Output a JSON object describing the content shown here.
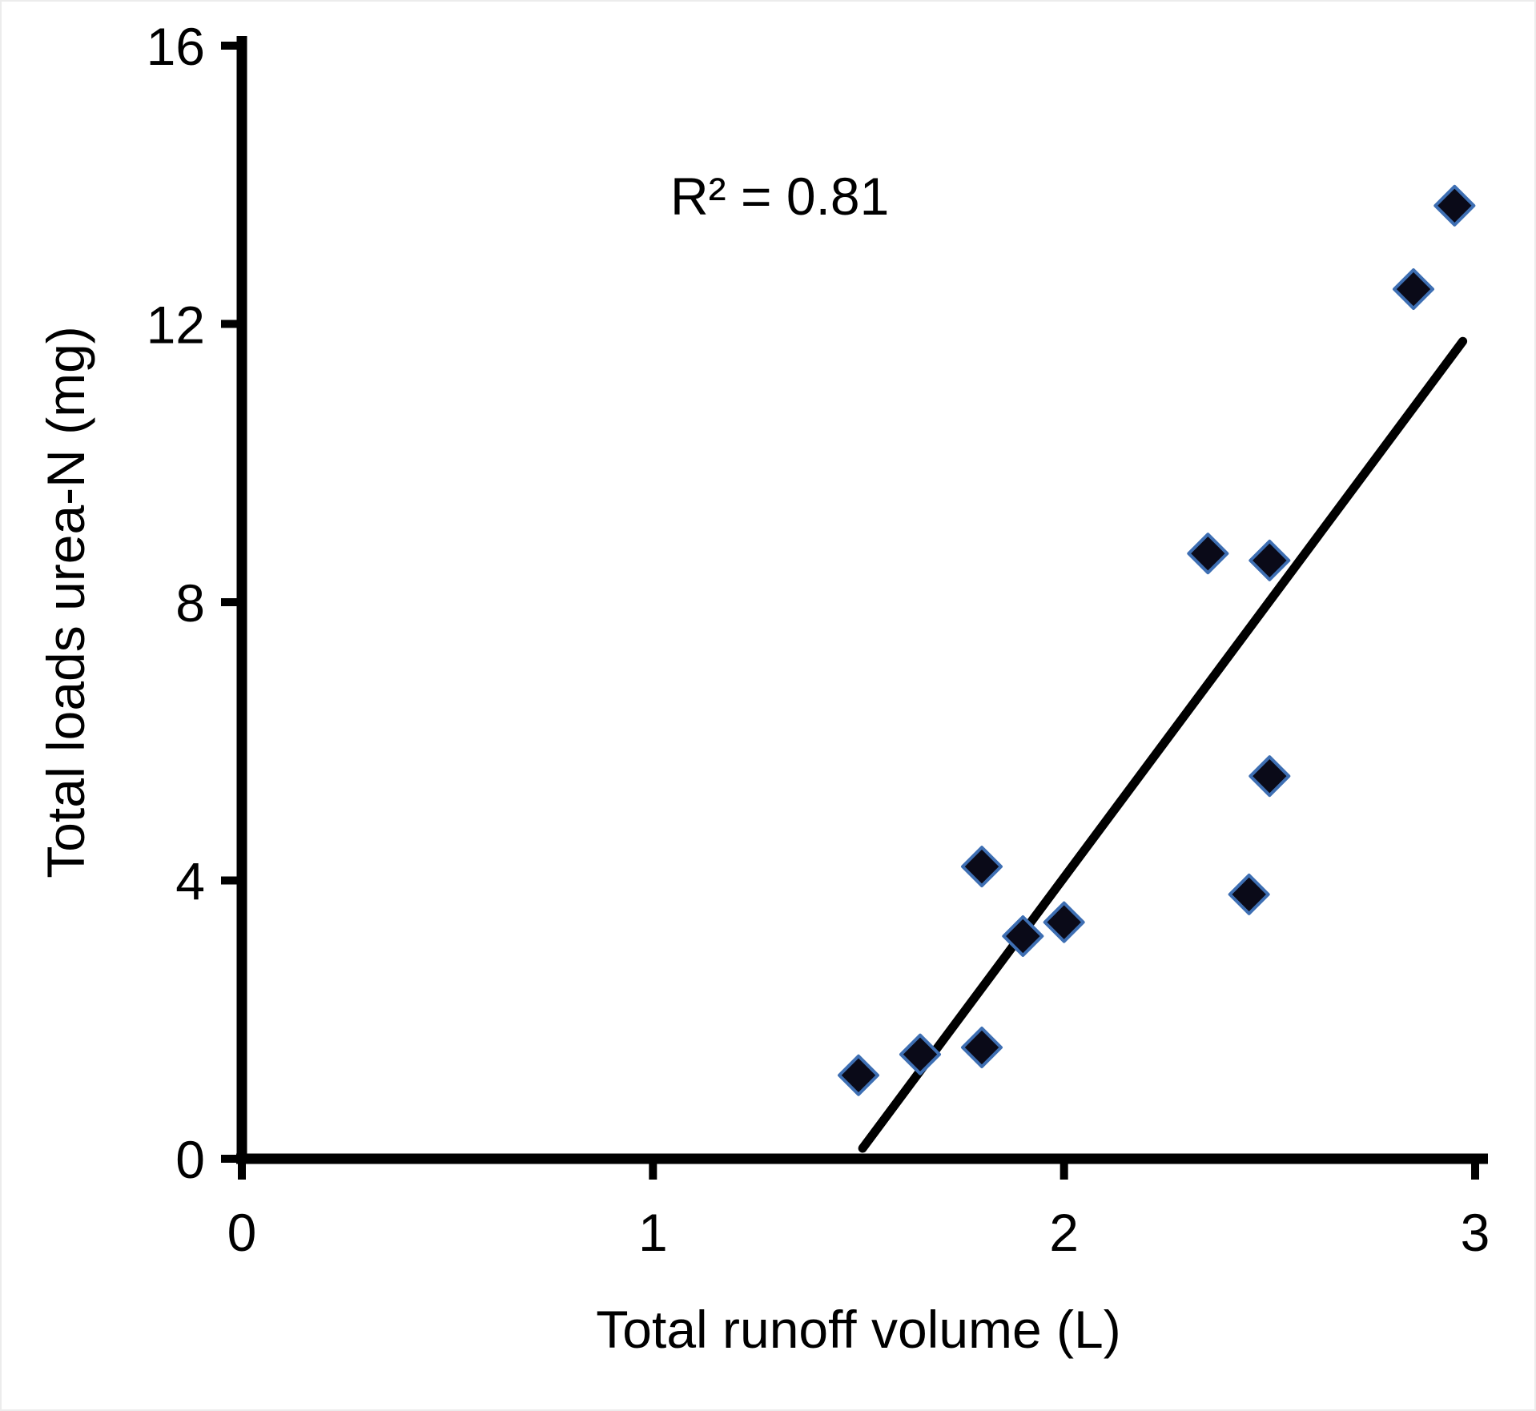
{
  "chart_data": {
    "type": "scatter",
    "title": "",
    "xlabel": "Total runoff volume (L)",
    "ylabel": "Total loads urea-N (mg)",
    "annotation": "R² = 0.81",
    "xlim": [
      0,
      3
    ],
    "ylim": [
      0,
      16
    ],
    "x_ticks": [
      0,
      1,
      2,
      3
    ],
    "y_ticks": [
      0,
      4,
      8,
      12,
      16
    ],
    "grid": false,
    "legend": null,
    "points": [
      [
        1.5,
        1.2
      ],
      [
        1.65,
        1.5
      ],
      [
        1.8,
        1.6
      ],
      [
        1.8,
        4.2
      ],
      [
        1.9,
        3.2
      ],
      [
        2.0,
        3.4
      ],
      [
        2.35,
        8.7
      ],
      [
        2.45,
        3.8
      ],
      [
        2.5,
        5.5
      ],
      [
        2.5,
        8.6
      ],
      [
        2.85,
        12.5
      ],
      [
        2.95,
        13.7
      ]
    ],
    "trendline": {
      "x1": 1.51,
      "y1": 0.15,
      "x2": 2.97,
      "y2": 11.75
    },
    "colors": {
      "marker_fill": "#0a0a18",
      "marker_stroke": "#3e6fb3",
      "trend": "#000000",
      "axis": "#000000"
    }
  }
}
